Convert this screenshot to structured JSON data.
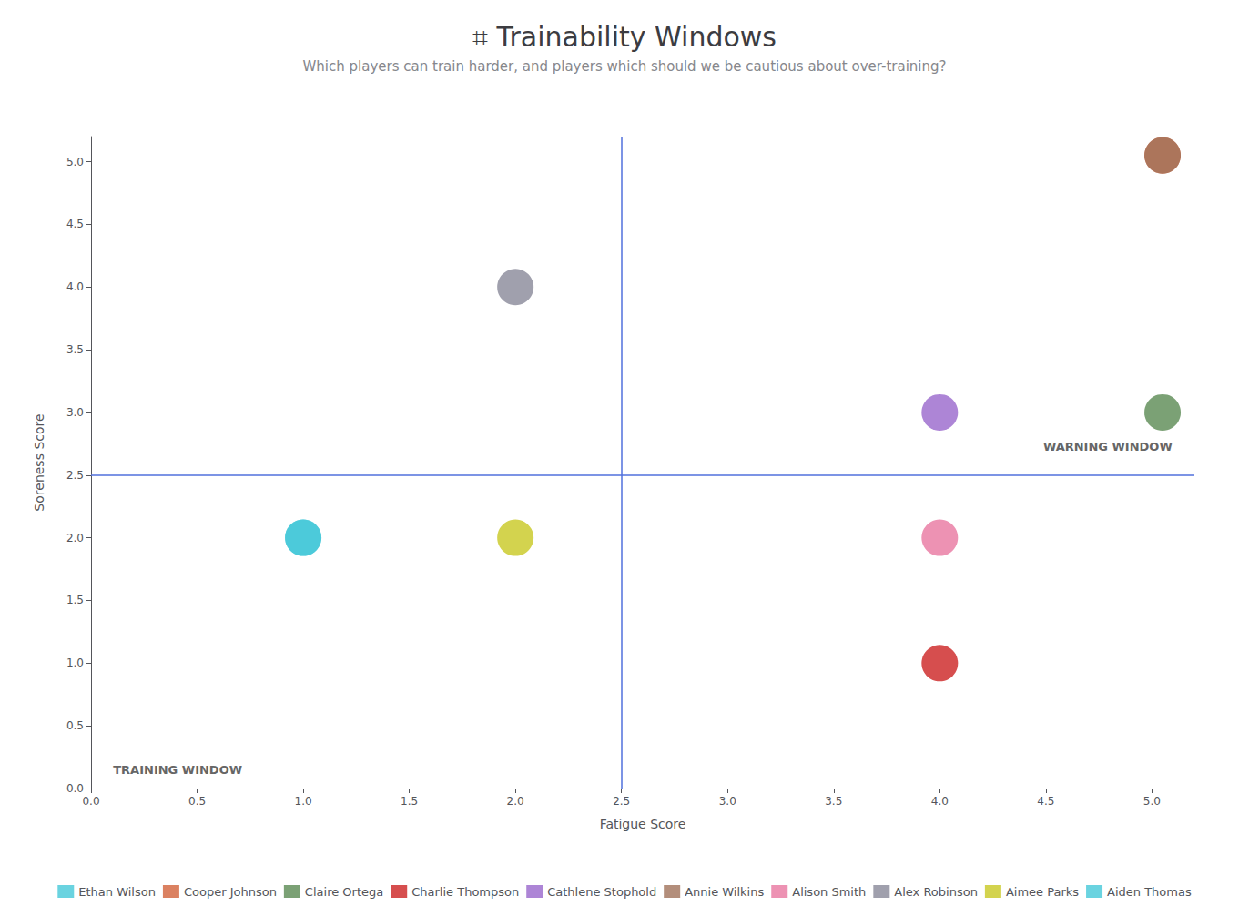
{
  "chart_data": {
    "type": "scatter",
    "title": "⌗ Trainability Windows",
    "subtitle": "Which players can train harder, and players which should we be cautious about over-training?",
    "xlabel": "Fatigue Score",
    "ylabel": "Soreness Score",
    "xlim": [
      0,
      5.2
    ],
    "ylim": [
      0,
      5.2
    ],
    "xticks": [
      {
        "value": 0.0,
        "label": "0.0"
      },
      0.5,
      {
        "value": 1.0,
        "label": "1.0"
      },
      1.5,
      {
        "value": 2.0,
        "label": "2.0"
      },
      2.5,
      {
        "value": 3.0,
        "label": "3.0"
      },
      3.5,
      {
        "value": 4.0,
        "label": "4.0"
      },
      4.5,
      {
        "value": 5.0,
        "label": "5.0"
      }
    ],
    "yticks": [
      {
        "value": 0.0,
        "label": "0.0"
      },
      0.5,
      {
        "value": 1.0,
        "label": "1.0"
      },
      1.5,
      {
        "value": 2.0,
        "label": "2.0"
      },
      2.5,
      {
        "value": 3.0,
        "label": "3.0"
      },
      3.5,
      {
        "value": 4.0,
        "label": "4.0"
      },
      4.5,
      {
        "value": 5.0,
        "label": "5.0"
      }
    ],
    "vline_x": 2.5,
    "hline_y": 2.5,
    "annotations": [
      "TRAINING WINDOW",
      "WARNING WINDOW"
    ],
    "series": [
      {
        "name": "Ethan Wilson",
        "color": "#45C8D8",
        "x": [
          1.0
        ],
        "values": [
          2.0
        ]
      },
      {
        "name": "Cooper Johnson",
        "color": "#D2623A",
        "x": [
          5.05
        ],
        "values": [
          5.05
        ]
      },
      {
        "name": "Claire Ortega",
        "color": "#5A8A52",
        "x": [
          5.05
        ],
        "values": [
          3.0
        ]
      },
      {
        "name": "Charlie Thompson",
        "color": "#CC2222",
        "x": [
          4.0
        ],
        "values": [
          1.0
        ]
      },
      {
        "name": "Cathlene Stophold",
        "color": "#9966CC",
        "x": [
          4.0
        ],
        "values": [
          3.0
        ]
      },
      {
        "name": "Annie Wilkins",
        "color": "#A0725A",
        "x": [
          5.05
        ],
        "values": [
          5.05
        ]
      },
      {
        "name": "Alison Smith",
        "color": "#E877A0",
        "x": [
          4.0
        ],
        "values": [
          2.0
        ]
      },
      {
        "name": "Alex Robinson",
        "color": "#888899",
        "x": [
          2.0
        ],
        "values": [
          4.0
        ]
      },
      {
        "name": "Aimee Parks",
        "color": "#C8C822",
        "x": [
          2.0
        ],
        "values": [
          2.0
        ]
      },
      {
        "name": "Aiden Thomas",
        "color": "#45C8D8",
        "x": [
          1.0
        ],
        "values": [
          2.0
        ]
      }
    ],
    "grid": false,
    "legend": "bottom"
  }
}
